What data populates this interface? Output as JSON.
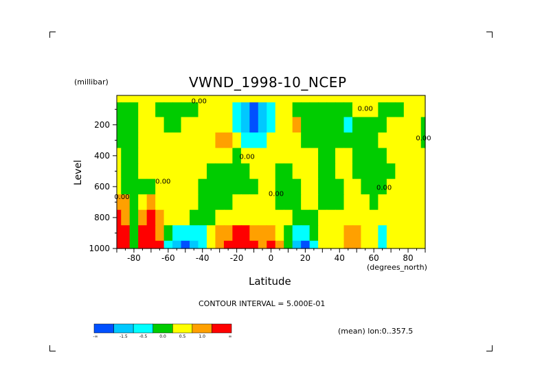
{
  "chart_data": {
    "type": "heatmap",
    "title": "VWND_1998-10_NCEP",
    "xlabel": "Latitude",
    "x_units": "(degrees_north)",
    "ylabel": "Level",
    "y_units": "(millibar)",
    "xlim": [
      -90,
      90
    ],
    "ylim": [
      1000,
      10
    ],
    "x_ticks": [
      -80,
      -60,
      -40,
      -20,
      0,
      20,
      40,
      60,
      80
    ],
    "y_ticks": [
      200,
      400,
      600,
      800,
      1000
    ],
    "contour_interval_text": "CONTOUR INTERVAL = 5.000E-01",
    "mean_text": "(mean) lon:0..357.5",
    "contour_labels": [
      {
        "text": "0.00",
        "x": 55,
        "y": 110
      },
      {
        "text": "0.00",
        "x": -42,
        "y": 60
      },
      {
        "text": "0.00",
        "x": -14,
        "y": 420
      },
      {
        "text": "0.00",
        "x": -63,
        "y": 580
      },
      {
        "text": "0.00",
        "x": 3,
        "y": 660
      },
      {
        "text": "0.00",
        "x": 66,
        "y": 620
      },
      {
        "text": "0.00",
        "x": 89,
        "y": 300
      },
      {
        "text": "0.00",
        "x": -87,
        "y": 680
      }
    ],
    "colorbar": {
      "colors": [
        "#0050ff",
        "#00c8ff",
        "#00ffff",
        "#00cc00",
        "#ffff00",
        "#ffa000",
        "#ff0000"
      ],
      "labels": [
        "-∞",
        "-1.5",
        "-0.5",
        "0.0",
        "0.5",
        "1.0",
        "∞"
      ]
    },
    "levels": [
      -1.5,
      -1.0,
      -0.5,
      0.0,
      0.5,
      1.0,
      1.5
    ],
    "color_map": [
      {
        "max": -1.5,
        "color": "#0050ff"
      },
      {
        "max": -1.0,
        "color": "#00c8ff"
      },
      {
        "max": -0.5,
        "color": "#00ffff"
      },
      {
        "max": 0.0,
        "color": "#00cc00"
      },
      {
        "max": 0.5,
        "color": "#ffff00"
      },
      {
        "max": 1.0,
        "color": "#ffa000"
      },
      {
        "max": 99,
        "color": "#ff0000"
      }
    ],
    "grid_lat": [
      -90,
      -85,
      -80,
      -75,
      -70,
      -65,
      -60,
      -55,
      -50,
      -45,
      -40,
      -35,
      -30,
      -25,
      -20,
      -15,
      -10,
      -5,
      0,
      5,
      10,
      15,
      20,
      25,
      30,
      35,
      40,
      45,
      50,
      55,
      60,
      65,
      70,
      75,
      80,
      85,
      90
    ],
    "grid_level": [
      10,
      100,
      200,
      300,
      400,
      500,
      600,
      700,
      800,
      900,
      1000
    ],
    "values": [
      [
        0.2,
        0.2,
        0.2,
        0.2,
        0.2,
        0.2,
        0.2,
        0.2,
        0.2,
        0.2,
        0.2,
        0.2,
        0.2,
        0.2,
        0.2,
        0.2,
        0.1,
        0.1,
        0.1,
        0.2,
        0.2,
        0.2,
        0.2,
        0.2,
        0.2,
        0.2,
        0.2,
        0.2,
        0.2,
        0.2,
        0.2,
        0.2,
        0.2,
        0.2,
        0.2,
        0.2,
        0.2
      ],
      [
        -0.3,
        -0.3,
        -0.3,
        0.2,
        0.2,
        -0.3,
        -0.3,
        -0.3,
        -0.3,
        -0.3,
        0.2,
        0.2,
        0.2,
        0.2,
        -0.6,
        -1.2,
        -1.8,
        -1.2,
        -0.6,
        0.2,
        0.2,
        -0.3,
        -0.3,
        -0.3,
        -0.3,
        -0.3,
        -0.3,
        -0.3,
        0.2,
        0.2,
        0.2,
        -0.3,
        -0.3,
        -0.3,
        0.2,
        0.2,
        0.2
      ],
      [
        -0.3,
        -0.3,
        -0.3,
        0.2,
        0.2,
        0.2,
        -0.3,
        -0.3,
        0.2,
        0.2,
        0.2,
        0.2,
        0.2,
        0.2,
        -0.6,
        -1.3,
        -1.9,
        -1.3,
        -0.6,
        0.2,
        0.3,
        0.7,
        -0.3,
        -0.3,
        -0.3,
        -0.3,
        -0.3,
        -0.6,
        -0.3,
        -0.3,
        -0.3,
        -0.3,
        0.2,
        0.2,
        0.2,
        0.2,
        -0.3
      ],
      [
        -0.3,
        -0.3,
        -0.3,
        0.2,
        0.2,
        0.2,
        0.2,
        0.2,
        0.2,
        0.2,
        0.2,
        0.2,
        0.6,
        0.6,
        0.2,
        -0.6,
        -0.6,
        -0.6,
        0.2,
        0.2,
        0.2,
        0.2,
        -0.3,
        -0.3,
        -0.3,
        -0.3,
        -0.3,
        -0.3,
        -0.3,
        -0.3,
        -0.3,
        0.2,
        0.2,
        0.2,
        0.2,
        0.2,
        -0.3
      ],
      [
        0.2,
        -0.3,
        -0.3,
        0.2,
        0.2,
        0.2,
        0.2,
        0.2,
        0.2,
        0.2,
        0.2,
        0.2,
        0.2,
        0.2,
        -0.3,
        0.2,
        0.2,
        0.2,
        0.2,
        0.2,
        0.2,
        0.2,
        0.2,
        0.2,
        -0.3,
        -0.3,
        0.2,
        0.2,
        -0.3,
        -0.3,
        -0.3,
        -0.3,
        0.2,
        0.2,
        0.2,
        0.2,
        0.2
      ],
      [
        0.2,
        -0.3,
        -0.3,
        0.2,
        0.2,
        0.2,
        0.2,
        0.2,
        0.2,
        0.2,
        0.2,
        -0.3,
        -0.3,
        -0.3,
        -0.3,
        -0.3,
        0.2,
        0.2,
        0.2,
        -0.3,
        -0.3,
        0.2,
        0.2,
        0.2,
        -0.3,
        -0.3,
        0.2,
        0.2,
        -0.3,
        -0.3,
        -0.3,
        -0.3,
        -0.3,
        0.2,
        0.2,
        0.2,
        0.2
      ],
      [
        0.3,
        -0.3,
        -0.3,
        -0.3,
        -0.3,
        0.2,
        0.2,
        0.2,
        0.2,
        0.2,
        -0.3,
        -0.3,
        -0.3,
        -0.3,
        -0.3,
        -0.3,
        -0.3,
        0.2,
        0.2,
        -0.3,
        -0.3,
        -0.3,
        0.2,
        0.2,
        -0.3,
        -0.3,
        -0.3,
        0.2,
        0.2,
        -0.3,
        -0.3,
        -0.3,
        0.2,
        0.2,
        0.2,
        0.2,
        0.2
      ],
      [
        0.6,
        0.7,
        -0.3,
        0.3,
        0.7,
        0.2,
        0.2,
        0.2,
        0.2,
        0.2,
        -0.3,
        -0.3,
        -0.3,
        -0.3,
        0.2,
        0.2,
        0.2,
        0.2,
        0.2,
        -0.3,
        -0.3,
        -0.3,
        0.2,
        0.2,
        -0.3,
        -0.3,
        -0.3,
        0.2,
        0.2,
        0.2,
        -0.3,
        0.2,
        0.2,
        0.2,
        0.2,
        0.2,
        0.2
      ],
      [
        1.2,
        0.9,
        -0.3,
        1.0,
        1.3,
        0.6,
        0.2,
        0.2,
        0.2,
        -0.3,
        -0.3,
        -0.3,
        0.2,
        0.2,
        0.2,
        0.2,
        0.2,
        0.2,
        0.2,
        0.2,
        0.2,
        -0.3,
        -0.3,
        -0.3,
        0.2,
        0.2,
        0.2,
        0.2,
        0.2,
        0.2,
        0.2,
        0.2,
        0.2,
        0.2,
        0.2,
        0.2,
        0.2
      ],
      [
        1.6,
        1.2,
        -0.3,
        1.3,
        1.6,
        1.0,
        -0.3,
        -0.6,
        -0.6,
        -0.6,
        -0.6,
        0.2,
        0.6,
        0.9,
        1.2,
        1.2,
        1.0,
        0.8,
        0.6,
        0.2,
        -0.3,
        -0.6,
        -0.6,
        -0.3,
        0.2,
        0.2,
        0.2,
        0.6,
        0.7,
        0.2,
        0.2,
        -0.6,
        0.2,
        0.2,
        0.2,
        0.2,
        0.2
      ],
      [
        1.8,
        1.4,
        -0.3,
        1.6,
        1.8,
        1.1,
        -0.6,
        -1.2,
        -1.8,
        -1.2,
        -0.6,
        0.2,
        0.9,
        1.3,
        1.7,
        1.8,
        1.3,
        1.0,
        1.6,
        1.0,
        -0.3,
        -1.0,
        -1.8,
        -0.6,
        0.2,
        0.2,
        0.2,
        0.7,
        0.9,
        0.2,
        0.2,
        -0.6,
        0.2,
        0.2,
        0.2,
        0.2,
        0.2
      ]
    ]
  }
}
